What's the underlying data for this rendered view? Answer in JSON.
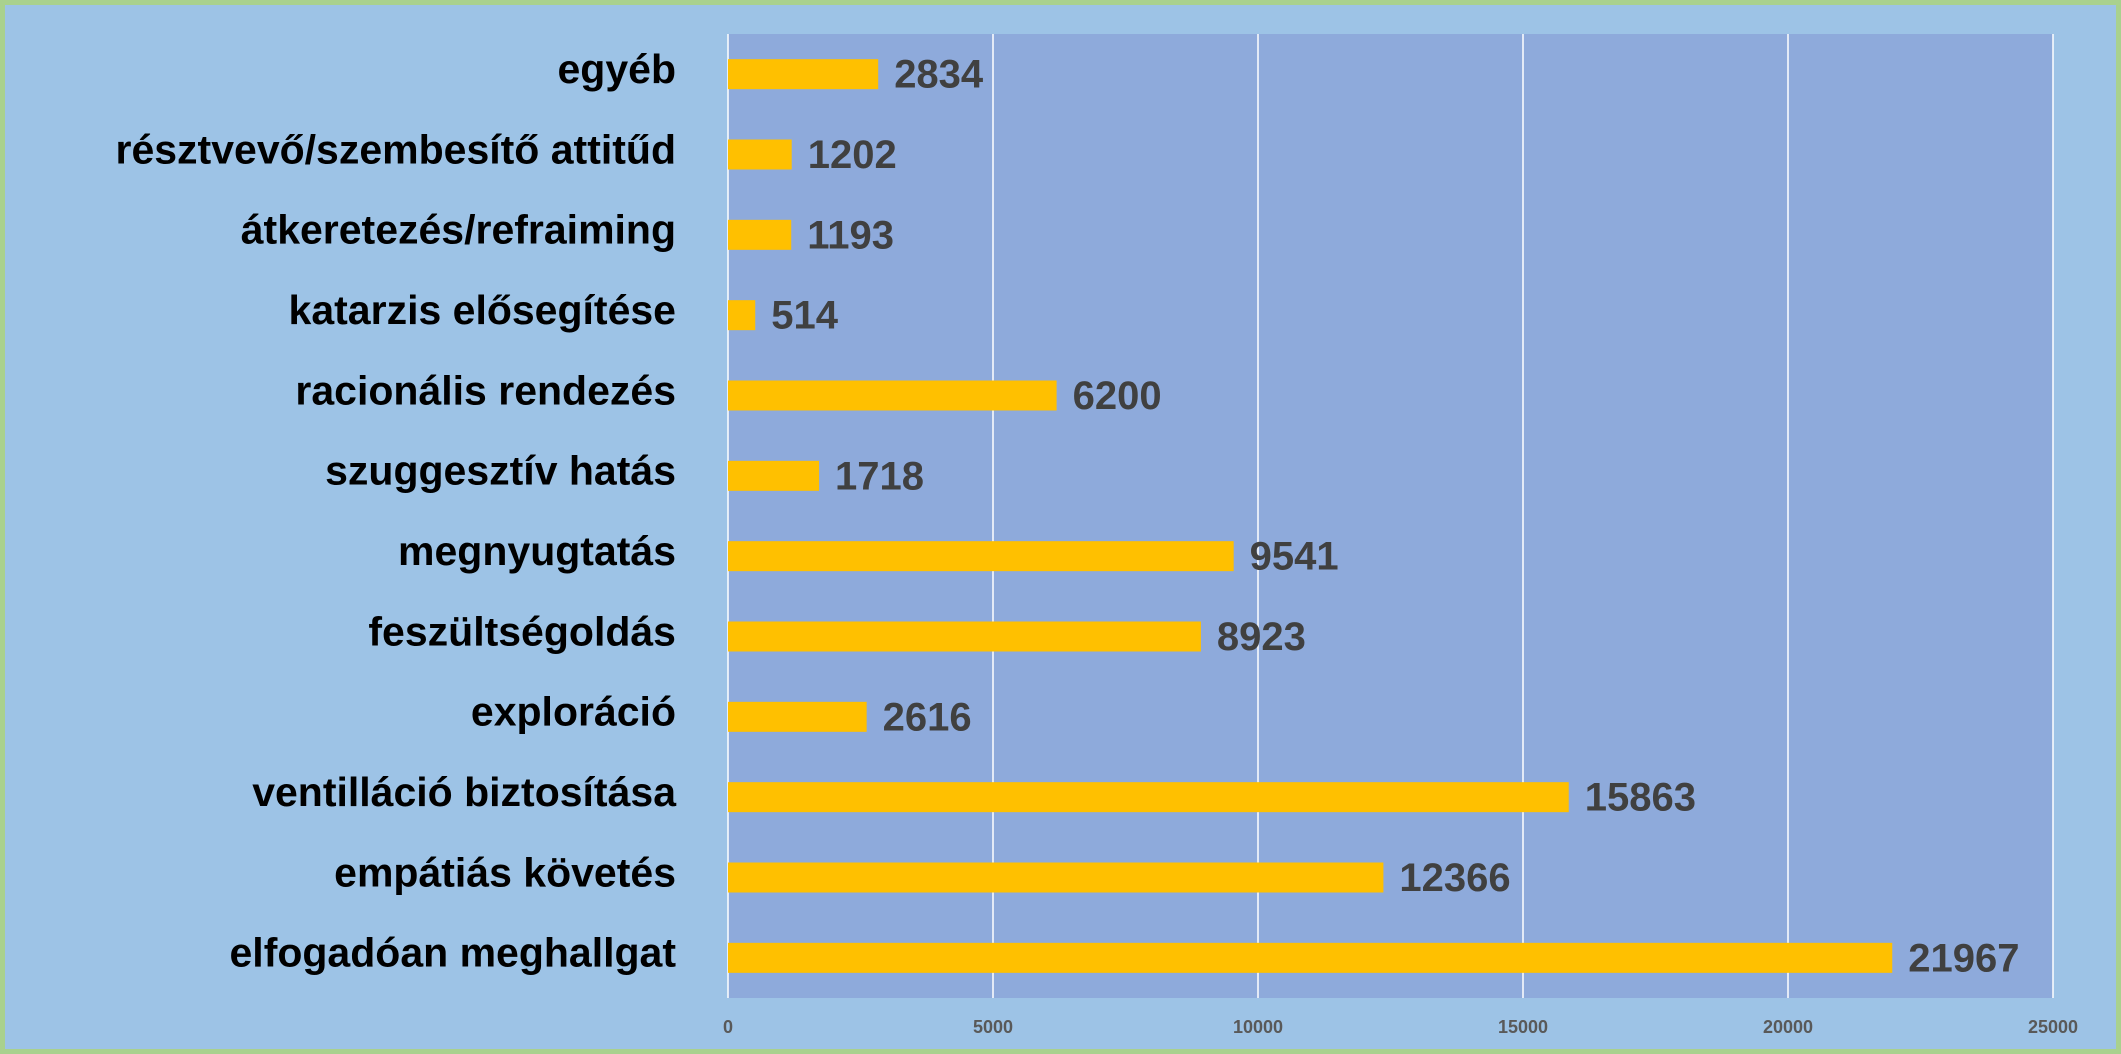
{
  "chart_data": {
    "type": "bar",
    "orientation": "horizontal",
    "categories": [
      "egyéb",
      "résztvevő/szembesítő attitűd",
      "átkeretezés/refraiming",
      "katarzis elősegítése",
      "racionális rendezés",
      "szuggesztív hatás",
      "megnyugtatás",
      "feszültségoldás",
      "exploráció",
      "ventilláció biztosítása",
      "empátiás követés",
      "elfogadóan meghallgat"
    ],
    "values": [
      2834,
      1202,
      1193,
      514,
      6200,
      1718,
      9541,
      8923,
      2616,
      15863,
      12366,
      21967
    ],
    "color": "#ffc000",
    "xlim": [
      0,
      25000
    ],
    "xticks": [
      0,
      5000,
      10000,
      15000,
      20000,
      25000
    ],
    "grid": true
  }
}
